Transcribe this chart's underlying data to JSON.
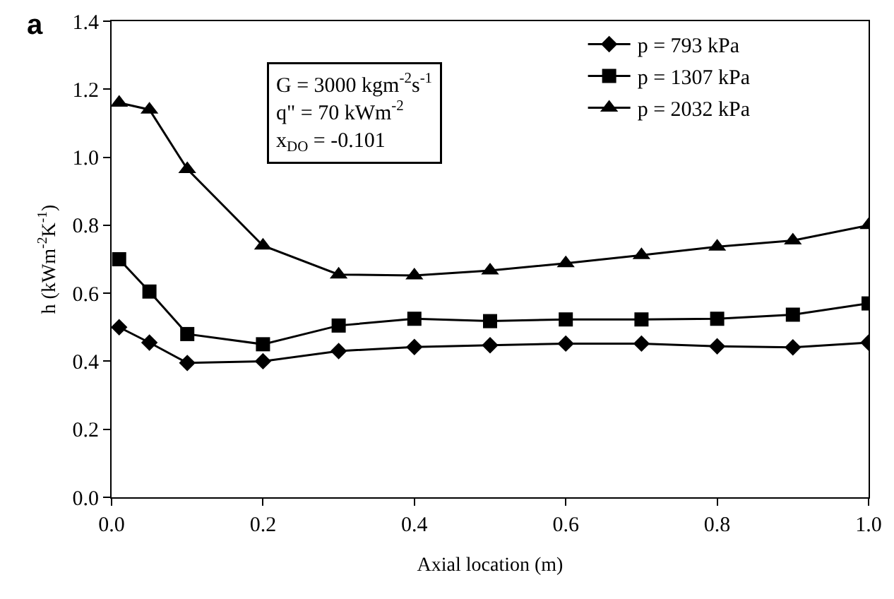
{
  "chart_data": {
    "type": "line",
    "xlabel": "Axial location (m)",
    "ylabel": "h (kWm$^{-2}$K$^{-1}$)",
    "x": [
      0.01,
      0.05,
      0.1,
      0.2,
      0.3,
      0.4,
      0.5,
      0.6,
      0.7,
      0.8,
      0.9,
      1.0
    ],
    "series": [
      {
        "name": "p = 793 kPa",
        "color": "#000000",
        "marker": "diamond",
        "values": [
          0.5,
          0.455,
          0.395,
          0.4,
          0.43,
          0.442,
          0.447,
          0.452,
          0.452,
          0.444,
          0.441,
          0.455
        ]
      },
      {
        "name": "p = 1307 kPa",
        "color": "#000000",
        "marker": "square",
        "values": [
          0.7,
          0.605,
          0.48,
          0.45,
          0.505,
          0.525,
          0.518,
          0.523,
          0.523,
          0.525,
          0.537,
          0.57
        ]
      },
      {
        "name": "p = 2032 kPa",
        "color": "#000000",
        "marker": "triangle",
        "values": [
          1.16,
          1.14,
          0.965,
          0.74,
          0.655,
          0.652,
          0.667,
          0.688,
          0.712,
          0.737,
          0.755,
          0.8
        ]
      }
    ],
    "xlim": [
      0,
      1
    ],
    "xticks": [
      {
        "value": 0,
        "label": "0.0"
      },
      0.2,
      0.4,
      0.6,
      0.8,
      {
        "value": 1,
        "label": "1.0"
      }
    ],
    "ylim": [
      0,
      1.4
    ],
    "yticks": [
      {
        "value": 0,
        "label": "0.0"
      },
      0.2,
      0.4,
      0.6,
      0.8,
      {
        "value": 1,
        "label": "1.0"
      },
      1.2,
      1.4
    ],
    "grid": false,
    "legend": "top right",
    "line_style": "solid",
    "annotations": [
      "a",
      "G = 3000 kgm$^{-2}$s$^{-1}$\nq\" = 70 kWm$^{-2}$\nx$_{DO}$ = -0.101"
    ]
  }
}
